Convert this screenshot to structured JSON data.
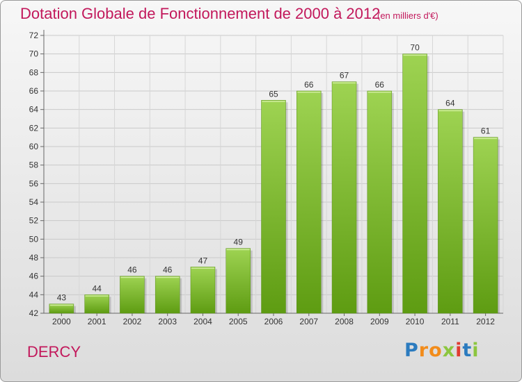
{
  "header": {
    "title": "Dotation Globale de Fonctionnement de 2000 à 2012",
    "unit": "(en milliers d'€)"
  },
  "footer": {
    "city": "DERCY",
    "logo": "Proxiti"
  },
  "colors": {
    "title": "#c2185b",
    "bar_top": "#9ed352",
    "bar_bottom": "#5e9c12"
  },
  "chart_data": {
    "type": "bar",
    "title": "Dotation Globale de Fonctionnement de 2000 à 2012",
    "subtitle": "(en milliers d'€)",
    "categories": [
      "2000",
      "2001",
      "2002",
      "2003",
      "2004",
      "2005",
      "2006",
      "2007",
      "2008",
      "2009",
      "2010",
      "2011",
      "2012"
    ],
    "values": [
      43,
      44,
      46,
      46,
      47,
      49,
      65,
      66,
      67,
      66,
      70,
      64,
      61
    ],
    "ylim": [
      42,
      72
    ],
    "yticks": [
      42,
      44,
      46,
      48,
      50,
      52,
      54,
      56,
      58,
      60,
      62,
      64,
      66,
      68,
      70,
      72
    ],
    "grid": true,
    "xlabel": "",
    "ylabel": ""
  }
}
